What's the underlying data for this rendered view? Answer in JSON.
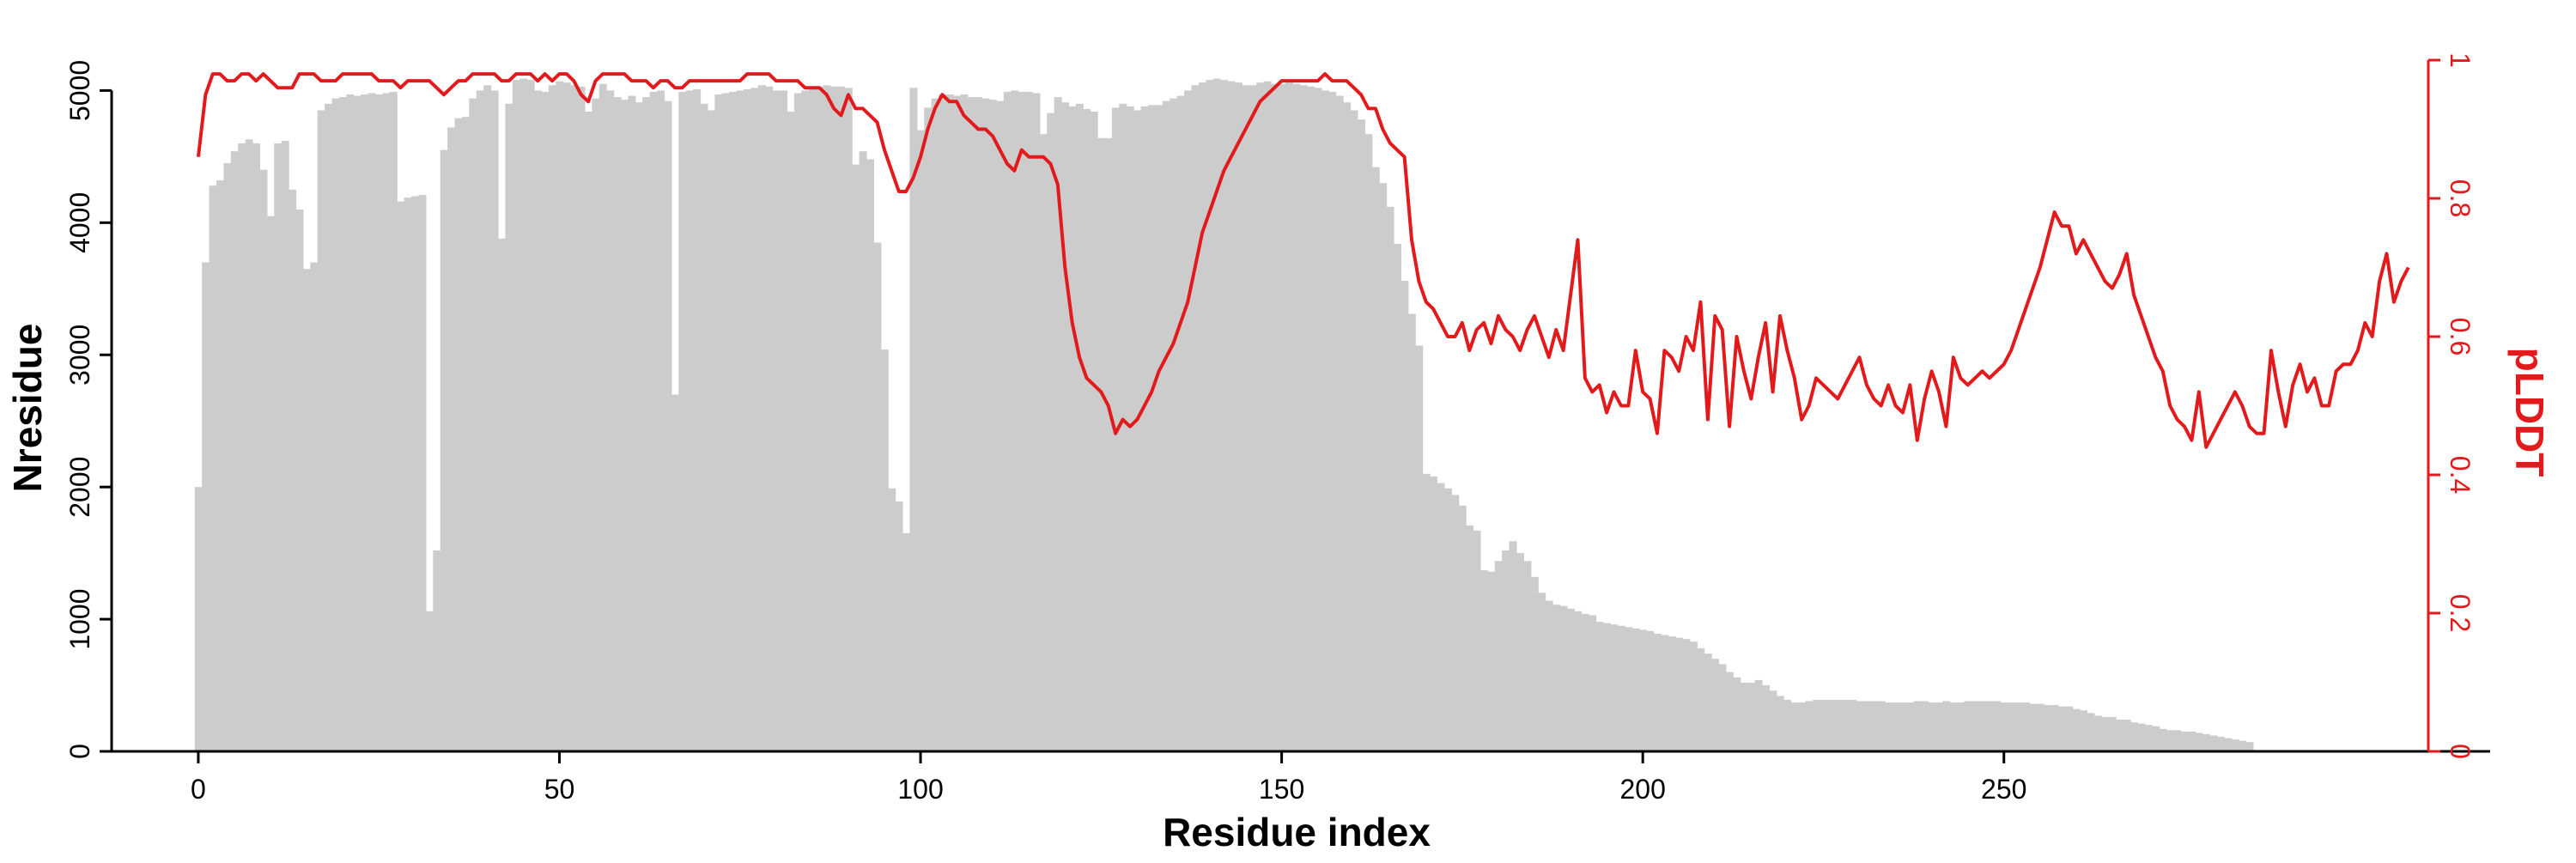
{
  "colors": {
    "bars": "#cccccc",
    "line": "#e31a1c",
    "axis": "#000000"
  },
  "chart_data": {
    "type": "bar",
    "xlabel": "Residue index",
    "ylabel": "Nresidue",
    "y2label": "pLDDT",
    "xlim": [
      -12,
      309
    ],
    "ylim": [
      0,
      5230
    ],
    "y2lim": [
      0,
      1
    ],
    "x_ticks": [
      "0",
      "50",
      "100",
      "150",
      "200",
      "250"
    ],
    "y_ticks": [
      "0",
      "1000",
      "2000",
      "3000",
      "4000",
      "5000"
    ],
    "y2_ticks": [
      "0",
      "0.2",
      "0.4",
      "0.6",
      "0.8",
      "1"
    ],
    "grid": false,
    "series": [
      {
        "type": "bar",
        "axis": "left",
        "x_start": 0,
        "values": [
          2000,
          3700,
          4280,
          4320,
          4450,
          4540,
          4600,
          4630,
          4600,
          4400,
          4050,
          4600,
          4620,
          4250,
          4100,
          3650,
          3700,
          4850,
          4900,
          4940,
          4950,
          4970,
          4960,
          4970,
          4980,
          4970,
          4980,
          4990,
          4160,
          4190,
          4200,
          4210,
          1060,
          1520,
          4550,
          4720,
          4790,
          4800,
          4940,
          5000,
          5040,
          5000,
          3880,
          4900,
          5080,
          5090,
          5080,
          5000,
          4990,
          5040,
          5070,
          5060,
          5040,
          5030,
          4840,
          4940,
          5050,
          5000,
          4950,
          4930,
          4960,
          4910,
          4950,
          4990,
          5000,
          4920,
          2700,
          4990,
          5000,
          5010,
          4900,
          4850,
          4970,
          4980,
          4990,
          5000,
          5010,
          5020,
          5040,
          5030,
          5000,
          5000,
          4840,
          4980,
          5000,
          5020,
          5030,
          5040,
          5030,
          5030,
          5020,
          4440,
          4540,
          4480,
          3850,
          3040,
          1990,
          1890,
          1650,
          5020,
          4700,
          4870,
          4940,
          4970,
          4970,
          4960,
          4970,
          4950,
          4950,
          4940,
          4930,
          4920,
          4990,
          5000,
          4990,
          4990,
          4980,
          4670,
          4830,
          4950,
          4910,
          4880,
          4900,
          4860,
          4840,
          4640,
          4640,
          4870,
          4900,
          4880,
          4850,
          4880,
          4890,
          4890,
          4920,
          4940,
          4960,
          5000,
          5040,
          5060,
          5080,
          5090,
          5080,
          5070,
          5060,
          5040,
          5040,
          5060,
          5070,
          5050,
          5050,
          5060,
          5050,
          5040,
          5030,
          5020,
          5000,
          4990,
          4960,
          4910,
          4850,
          4780,
          4670,
          4420,
          4300,
          4120,
          3840,
          3560,
          3310,
          3070,
          2100,
          2080,
          2030,
          1990,
          1940,
          1860,
          1710,
          1670,
          1370,
          1360,
          1440,
          1520,
          1590,
          1500,
          1440,
          1320,
          1200,
          1140,
          1110,
          1100,
          1080,
          1060,
          1040,
          1030,
          980,
          970,
          960,
          950,
          940,
          930,
          920,
          910,
          890,
          880,
          870,
          860,
          850,
          830,
          780,
          740,
          700,
          660,
          600,
          560,
          520,
          520,
          540,
          500,
          460,
          420,
          390,
          370,
          370,
          380,
          390,
          390,
          390,
          390,
          390,
          390,
          380,
          380,
          380,
          380,
          370,
          370,
          370,
          370,
          380,
          380,
          370,
          370,
          380,
          370,
          370,
          380,
          380,
          380,
          380,
          380,
          370,
          370,
          370,
          370,
          360,
          360,
          350,
          350,
          340,
          340,
          320,
          310,
          290,
          270,
          260,
          260,
          240,
          240,
          220,
          210,
          200,
          190,
          170,
          160,
          160,
          150,
          150,
          140,
          130,
          120,
          110,
          100,
          90,
          80,
          70
        ]
      },
      {
        "type": "line",
        "axis": "right",
        "name": "pLDDT",
        "x_start": 0,
        "values": [
          0.86,
          0.95,
          0.98,
          0.98,
          0.97,
          0.97,
          0.98,
          0.98,
          0.97,
          0.98,
          0.97,
          0.96,
          0.96,
          0.96,
          0.98,
          0.98,
          0.98,
          0.97,
          0.97,
          0.97,
          0.98,
          0.98,
          0.98,
          0.98,
          0.98,
          0.97,
          0.97,
          0.97,
          0.96,
          0.97,
          0.97,
          0.97,
          0.97,
          0.96,
          0.95,
          0.96,
          0.97,
          0.97,
          0.98,
          0.98,
          0.98,
          0.98,
          0.97,
          0.97,
          0.98,
          0.98,
          0.98,
          0.97,
          0.98,
          0.97,
          0.98,
          0.98,
          0.97,
          0.95,
          0.94,
          0.97,
          0.98,
          0.98,
          0.98,
          0.98,
          0.97,
          0.97,
          0.97,
          0.96,
          0.97,
          0.97,
          0.96,
          0.96,
          0.97,
          0.97,
          0.97,
          0.97,
          0.97,
          0.97,
          0.97,
          0.97,
          0.98,
          0.98,
          0.98,
          0.98,
          0.97,
          0.97,
          0.97,
          0.97,
          0.96,
          0.96,
          0.96,
          0.95,
          0.93,
          0.92,
          0.95,
          0.93,
          0.93,
          0.92,
          0.91,
          0.87,
          0.84,
          0.81,
          0.81,
          0.83,
          0.86,
          0.9,
          0.93,
          0.95,
          0.94,
          0.94,
          0.92,
          0.91,
          0.9,
          0.9,
          0.89,
          0.87,
          0.85,
          0.84,
          0.87,
          0.86,
          0.86,
          0.86,
          0.85,
          0.82,
          0.7,
          0.62,
          0.57,
          0.54,
          0.53,
          0.52,
          0.5,
          0.46,
          0.48,
          0.47,
          0.48,
          0.5,
          0.52,
          0.55,
          0.57,
          0.59,
          0.62,
          0.65,
          0.7,
          0.75,
          0.78,
          0.81,
          0.84,
          0.86,
          0.88,
          0.9,
          0.92,
          0.94,
          0.95,
          0.96,
          0.97,
          0.97,
          0.97,
          0.97,
          0.97,
          0.97,
          0.98,
          0.97,
          0.97,
          0.97,
          0.96,
          0.95,
          0.93,
          0.93,
          0.9,
          0.88,
          0.87,
          0.86,
          0.74,
          0.68,
          0.65,
          0.64,
          0.62,
          0.6,
          0.6,
          0.62,
          0.58,
          0.61,
          0.62,
          0.59,
          0.63,
          0.61,
          0.6,
          0.58,
          0.61,
          0.63,
          0.6,
          0.57,
          0.61,
          0.58,
          0.66,
          0.74,
          0.54,
          0.52,
          0.53,
          0.49,
          0.52,
          0.5,
          0.5,
          0.58,
          0.52,
          0.51,
          0.46,
          0.58,
          0.57,
          0.55,
          0.6,
          0.58,
          0.65,
          0.48,
          0.63,
          0.61,
          0.47,
          0.6,
          0.55,
          0.51,
          0.57,
          0.62,
          0.52,
          0.63,
          0.58,
          0.54,
          0.48,
          0.5,
          0.54,
          0.53,
          0.52,
          0.51,
          0.53,
          0.55,
          0.57,
          0.53,
          0.51,
          0.5,
          0.53,
          0.5,
          0.49,
          0.53,
          0.45,
          0.51,
          0.55,
          0.52,
          0.47,
          0.57,
          0.54,
          0.53,
          0.54,
          0.55,
          0.54,
          0.55,
          0.56,
          0.58,
          0.61,
          0.64,
          0.67,
          0.7,
          0.74,
          0.78,
          0.76,
          0.76,
          0.72,
          0.74,
          0.72,
          0.7,
          0.68,
          0.67,
          0.69,
          0.72,
          0.66,
          0.63,
          0.6,
          0.57,
          0.55,
          0.5,
          0.48,
          0.47,
          0.45,
          0.52,
          0.44,
          0.46,
          0.48,
          0.5,
          0.52,
          0.5,
          0.47,
          0.46,
          0.46,
          0.58,
          0.52,
          0.47,
          0.53,
          0.56,
          0.52,
          0.54,
          0.5,
          0.5,
          0.55,
          0.56,
          0.56,
          0.58,
          0.62,
          0.6,
          0.68,
          0.72,
          0.65,
          0.68,
          0.7
        ]
      }
    ]
  }
}
